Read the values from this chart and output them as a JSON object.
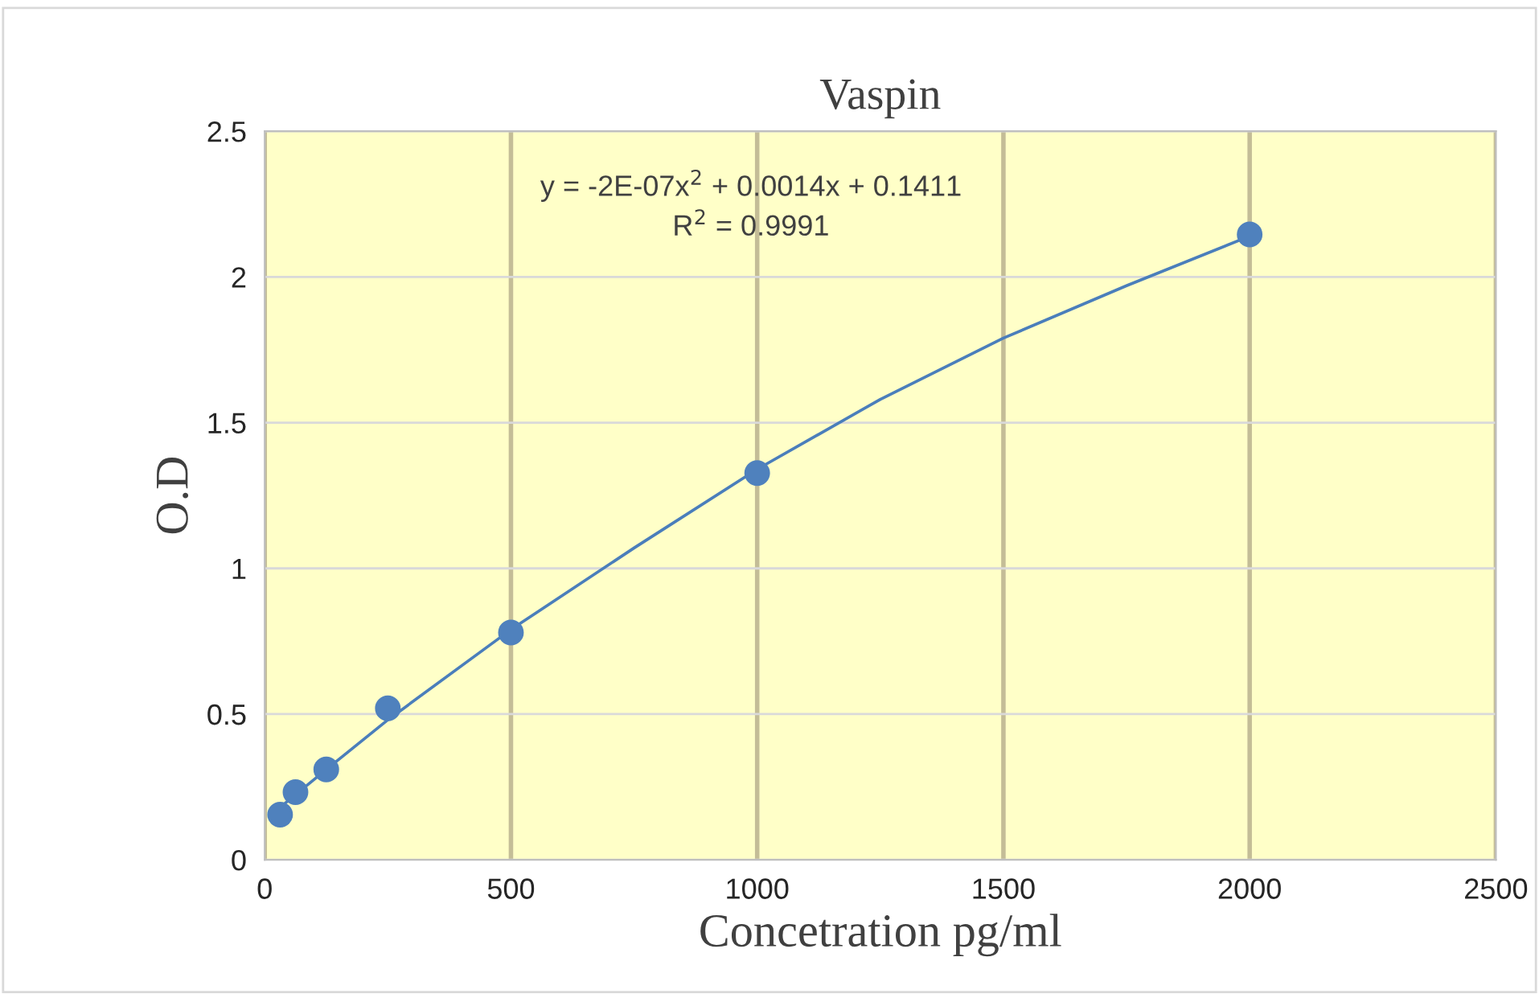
{
  "chart_data": {
    "type": "scatter",
    "title": "Vaspin",
    "xlabel": "Concetration pg/ml",
    "ylabel": "O.D",
    "series": [
      {
        "color": "#4f81bd",
        "x": [
          31.25,
          62.5,
          125,
          250,
          500,
          1000,
          2000
        ],
        "values": [
          0.155,
          0.232,
          0.31,
          0.52,
          0.78,
          1.327,
          2.146
        ],
        "marker": "circle"
      },
      {
        "type": "line",
        "color": "#4a7ebb",
        "x": [
          31.25,
          125,
          250,
          500,
          750,
          1000,
          1250,
          1500,
          1750,
          2000
        ],
        "values": [
          0.18,
          0.31,
          0.48,
          0.79,
          1.07,
          1.34,
          1.58,
          1.79,
          1.97,
          2.14
        ],
        "marker": "none",
        "line_style": "solid"
      }
    ],
    "annotations": [
      "y = -2E-07x$^{2}$ + 0.0014x + 0.1411",
      "R$^{2}$ = 0.9991"
    ],
    "xlim": [
      0,
      2500
    ],
    "xticks": [
      0,
      500,
      1000,
      1500,
      2000,
      2500
    ],
    "ylim": [
      0,
      2.5
    ],
    "yticks": [
      0,
      0.5,
      1,
      1.5,
      2,
      2.5
    ],
    "grid": true,
    "legend": false
  }
}
